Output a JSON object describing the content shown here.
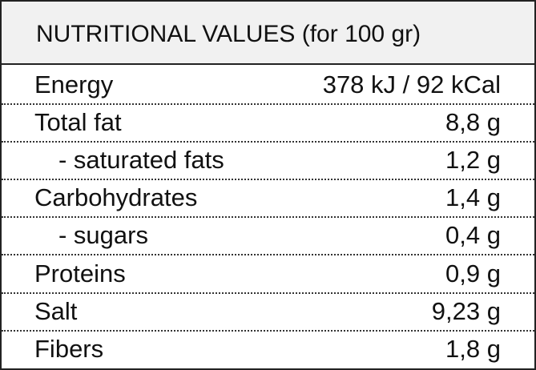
{
  "table": {
    "title": "NUTRITIONAL VALUES (for 100 gr)",
    "rows": [
      [
        "Energy",
        "378 kJ / 92 kCal"
      ],
      [
        "Total fat",
        "8,8 g"
      ],
      [
        "- saturated fats",
        "1,2 g"
      ],
      [
        "Carbohydrates",
        "1,4 g"
      ],
      [
        "- sugars",
        "0,4 g"
      ],
      [
        "Proteins",
        "0,9 g"
      ],
      [
        "Salt",
        "9,23 g"
      ],
      [
        "Fibers",
        "1,8 g"
      ]
    ]
  }
}
